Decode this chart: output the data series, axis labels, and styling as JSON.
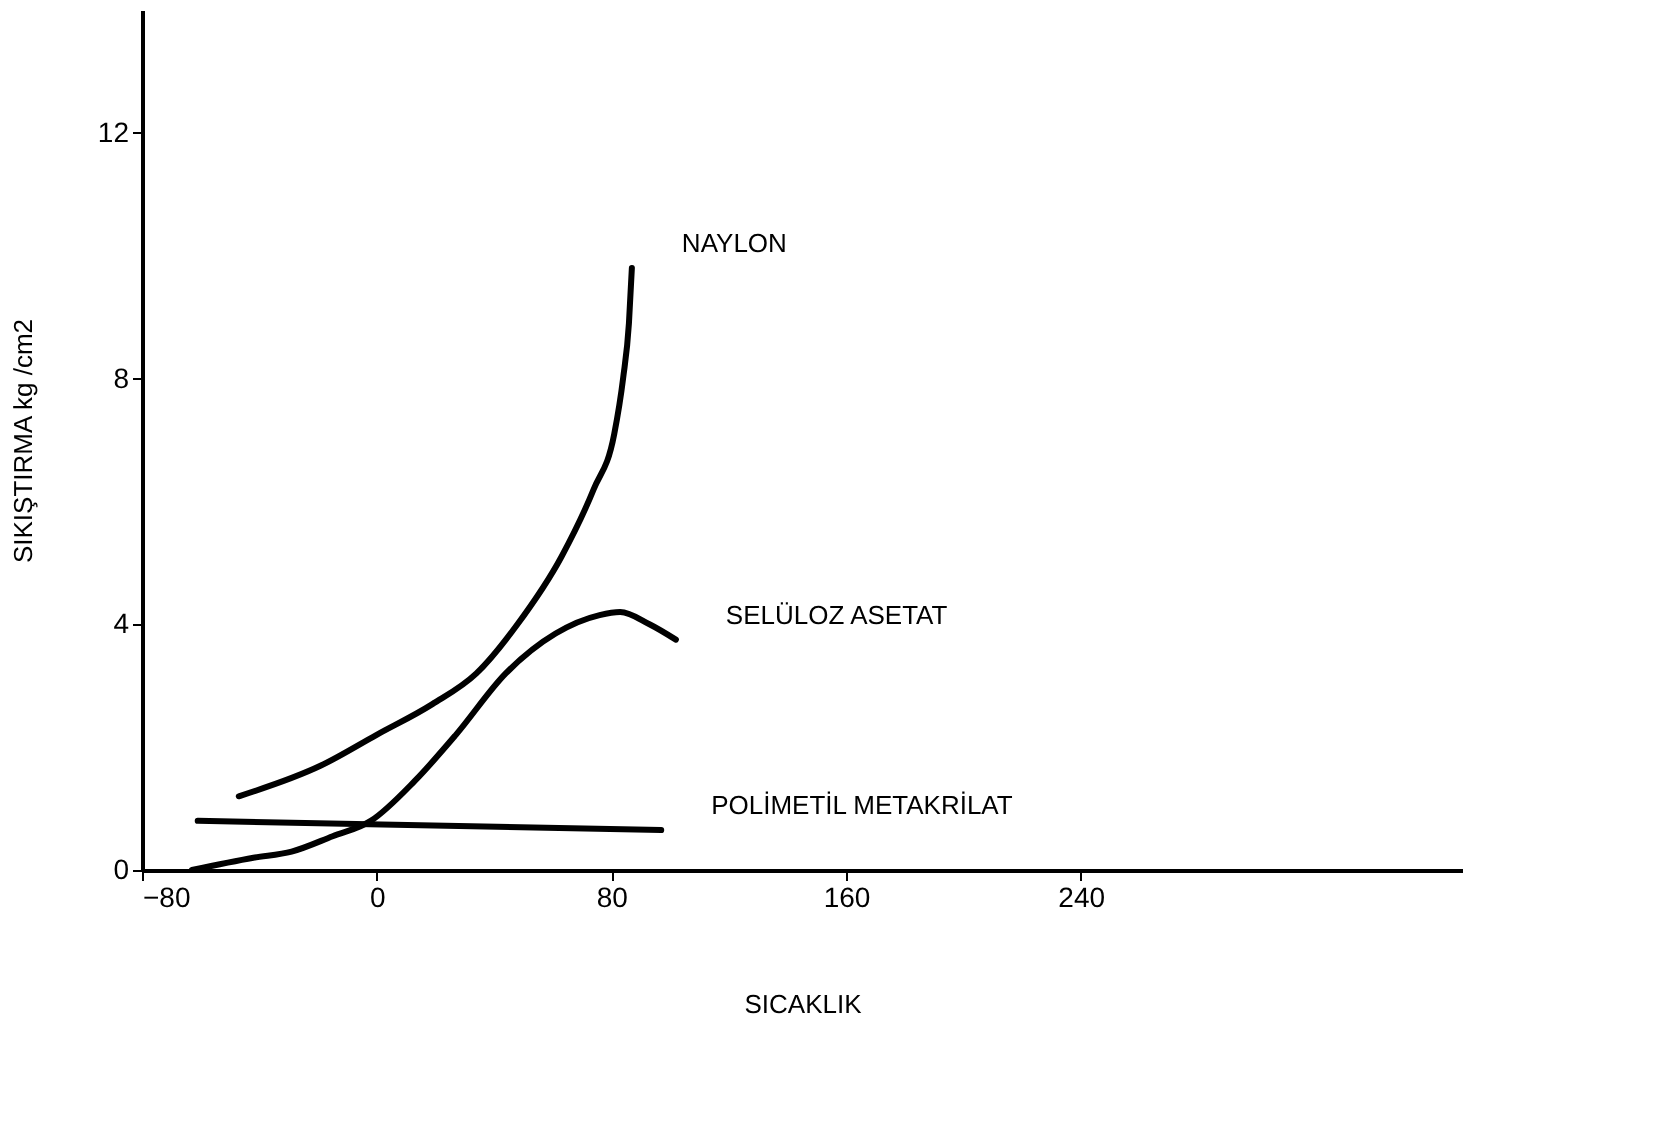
{
  "chart_data": {
    "type": "line",
    "xlabel": "SICAKLIK",
    "ylabel": "SIKIŞTIRMA  kg /cm2",
    "xlim": [
      -80,
      370
    ],
    "ylim": [
      0,
      14
    ],
    "xticks": [
      -80,
      0,
      80,
      160,
      240
    ],
    "yticks": [
      0,
      4,
      8,
      12
    ],
    "grid": false,
    "marker": "none",
    "line_style": "solid",
    "series": [
      {
        "name": "NAYLON",
        "color": "#000000",
        "x": [
          -47,
          -19,
          0,
          19,
          34,
          48,
          63,
          74,
          81,
          84,
          86,
          87
        ],
        "values": [
          1.2,
          1.7,
          2.2,
          2.7,
          3.2,
          4.0,
          5.1,
          6.2,
          7.1,
          8.0,
          8.9,
          9.8
        ]
      },
      {
        "name": "SELÜLOZ ASETAT",
        "color": "#000000",
        "x": [
          -63,
          -42,
          -29,
          -15,
          -2,
          13,
          27,
          44,
          61,
          76,
          83,
          93,
          102
        ],
        "values": [
          0,
          0.2,
          0.3,
          0.55,
          0.8,
          1.45,
          2.2,
          3.2,
          3.85,
          4.15,
          4.2,
          4.0,
          3.75
        ]
      },
      {
        "name": "POLİMETİL METAKRİLAT",
        "color": "#000000",
        "x": [
          -61,
          97
        ],
        "values": [
          0.8,
          0.65
        ]
      }
    ]
  }
}
